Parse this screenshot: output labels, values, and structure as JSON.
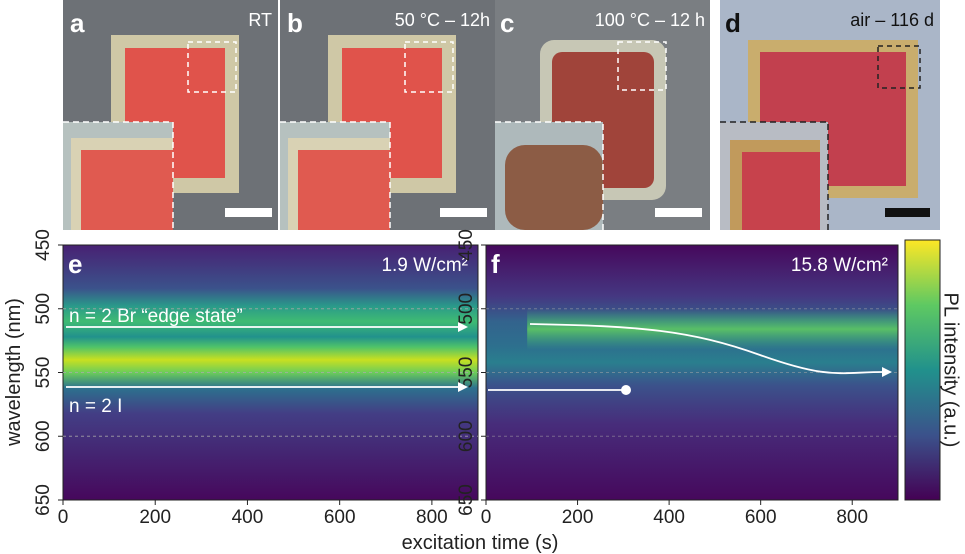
{
  "images": [
    {
      "label": "a",
      "caption": "RT"
    },
    {
      "label": "b",
      "caption": "50 °C – 12h"
    },
    {
      "label": "c",
      "caption": "100 °C – 12 h"
    },
    {
      "label": "d",
      "caption": "air – 116 d"
    }
  ],
  "colorbar": {
    "label": "PL intensity (a.u.)"
  },
  "chart_data": [
    {
      "type": "heatmap",
      "label": "e",
      "annotation": "1.9 W/cm²",
      "annotations": [
        "n = 2 Br “edge state”",
        "n = 2 I"
      ],
      "xlabel": "excitation time (s)",
      "ylabel": "wavelength (nm)",
      "xlim": [
        0,
        900
      ],
      "xticks": [
        0,
        200,
        400,
        600,
        800
      ],
      "ylim": [
        650,
        450
      ],
      "yticks": [
        450,
        500,
        550,
        600,
        650
      ],
      "grid": true
    },
    {
      "type": "heatmap",
      "label": "f",
      "annotation": "15.8 W/cm²",
      "xlim": [
        0,
        900
      ],
      "xticks": [
        0,
        200,
        400,
        600,
        800
      ],
      "ylim": [
        650,
        450
      ],
      "yticks": [
        450,
        500,
        550,
        600,
        650
      ],
      "grid": true
    }
  ]
}
